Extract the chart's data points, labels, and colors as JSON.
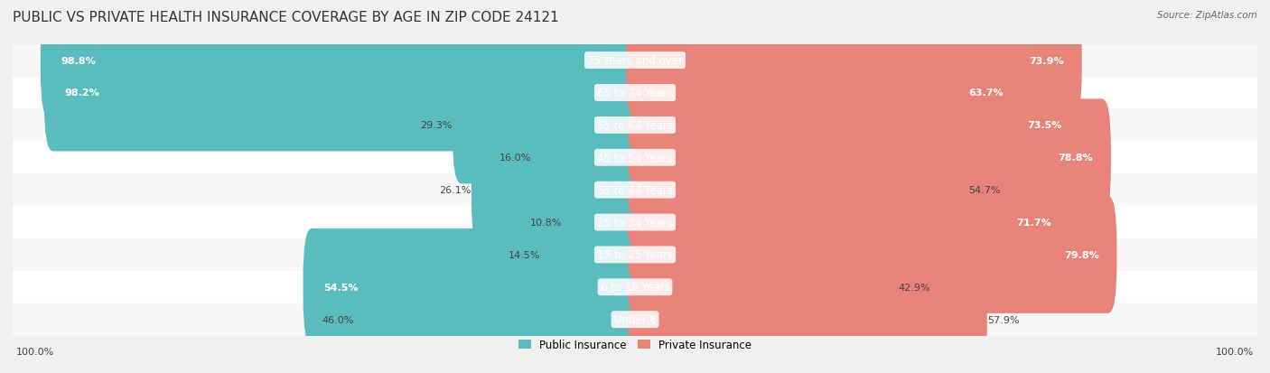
{
  "title": "PUBLIC VS PRIVATE HEALTH INSURANCE COVERAGE BY AGE IN ZIP CODE 24121",
  "source": "Source: ZipAtlas.com",
  "categories": [
    "Under 6",
    "6 to 18 Years",
    "19 to 25 Years",
    "25 to 34 Years",
    "35 to 44 Years",
    "45 to 54 Years",
    "55 to 64 Years",
    "65 to 74 Years",
    "75 Years and over"
  ],
  "public_values": [
    46.0,
    54.5,
    14.5,
    10.8,
    26.1,
    16.0,
    29.3,
    98.2,
    98.8
  ],
  "private_values": [
    57.9,
    42.9,
    79.8,
    71.7,
    54.7,
    78.8,
    73.5,
    63.7,
    73.9
  ],
  "public_color": "#5BBCBE",
  "private_color": "#E8837A",
  "public_color_light": "#7DCFCF",
  "private_color_light": "#F2AFA8",
  "background_color": "#F0F0F0",
  "bar_background": "#FFFFFF",
  "row_background_light": "#F7F7F7",
  "row_background_dark": "#ECECEC",
  "axis_label_left": "100.0%",
  "axis_label_right": "100.0%",
  "legend_public": "Public Insurance",
  "legend_private": "Private Insurance",
  "title_fontsize": 11,
  "label_fontsize": 8.5,
  "category_fontsize": 8.5,
  "value_fontsize": 8.0
}
